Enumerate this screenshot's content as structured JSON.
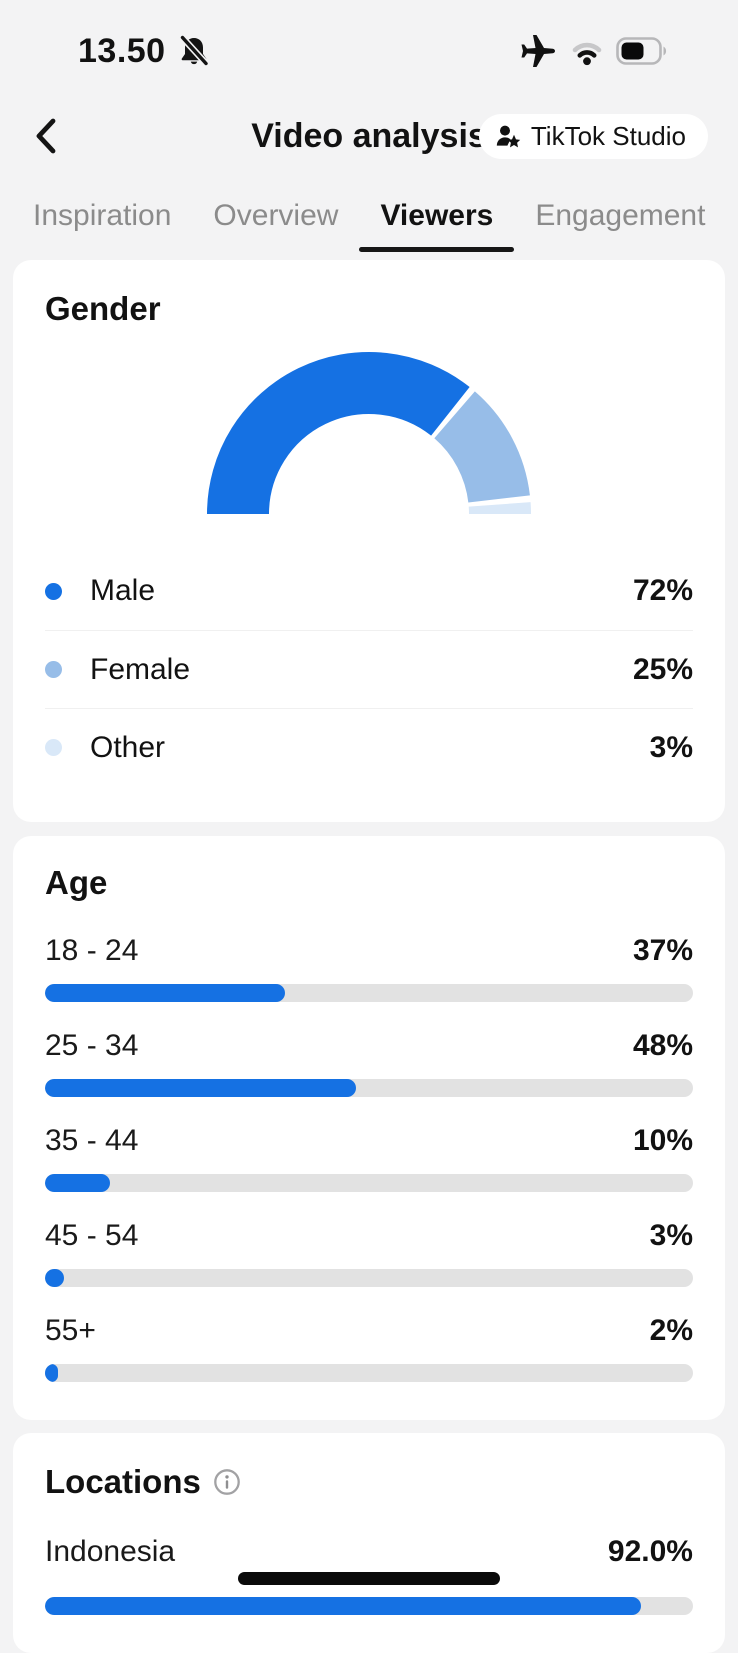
{
  "colors": {
    "accent_blue": "#1571E3",
    "female_blue": "#97BDE8",
    "other_blue": "#D9E8F8",
    "track_gray": "#E2E2E2",
    "page_bg": "#F3F3F4",
    "card_bg": "#FFFFFF"
  },
  "status_bar": {
    "time": "13.50",
    "icons": [
      "notifications-muted",
      "airplane-mode",
      "wifi",
      "battery-half"
    ]
  },
  "header": {
    "title": "Video analysis",
    "studio_button_label": "TikTok Studio"
  },
  "tabs": [
    {
      "label": "Inspiration",
      "active": false
    },
    {
      "label": "Overview",
      "active": false
    },
    {
      "label": "Viewers",
      "active": true
    },
    {
      "label": "Engagement",
      "active": false
    }
  ],
  "gender": {
    "title": "Gender",
    "chart_data": {
      "type": "donut-semi",
      "categories": [
        "Male",
        "Female",
        "Other"
      ],
      "values": [
        72,
        25,
        3
      ]
    },
    "items": [
      {
        "label": "Male",
        "value": 72,
        "value_label": "72%",
        "color": "#1571E3"
      },
      {
        "label": "Female",
        "value": 25,
        "value_label": "25%",
        "color": "#97BDE8"
      },
      {
        "label": "Other",
        "value": 3,
        "value_label": "3%",
        "color": "#D9E8F8"
      }
    ]
  },
  "age": {
    "title": "Age",
    "chart_data": {
      "type": "bar",
      "categories": [
        "18 - 24",
        "25 - 34",
        "35 - 44",
        "45 - 54",
        "55+"
      ],
      "values": [
        37,
        48,
        10,
        3,
        2
      ]
    },
    "items": [
      {
        "label": "18 - 24",
        "value": 37,
        "value_label": "37%"
      },
      {
        "label": "25 - 34",
        "value": 48,
        "value_label": "48%"
      },
      {
        "label": "35 - 44",
        "value": 10,
        "value_label": "10%"
      },
      {
        "label": "45 - 54",
        "value": 3,
        "value_label": "3%"
      },
      {
        "label": "55+",
        "value": 2,
        "value_label": "2%"
      }
    ]
  },
  "locations": {
    "title": "Locations",
    "chart_data": {
      "type": "bar",
      "categories": [
        "Indonesia"
      ],
      "values": [
        92.0
      ]
    },
    "items": [
      {
        "label": "Indonesia",
        "value": 92,
        "value_label": "92.0%"
      }
    ]
  }
}
